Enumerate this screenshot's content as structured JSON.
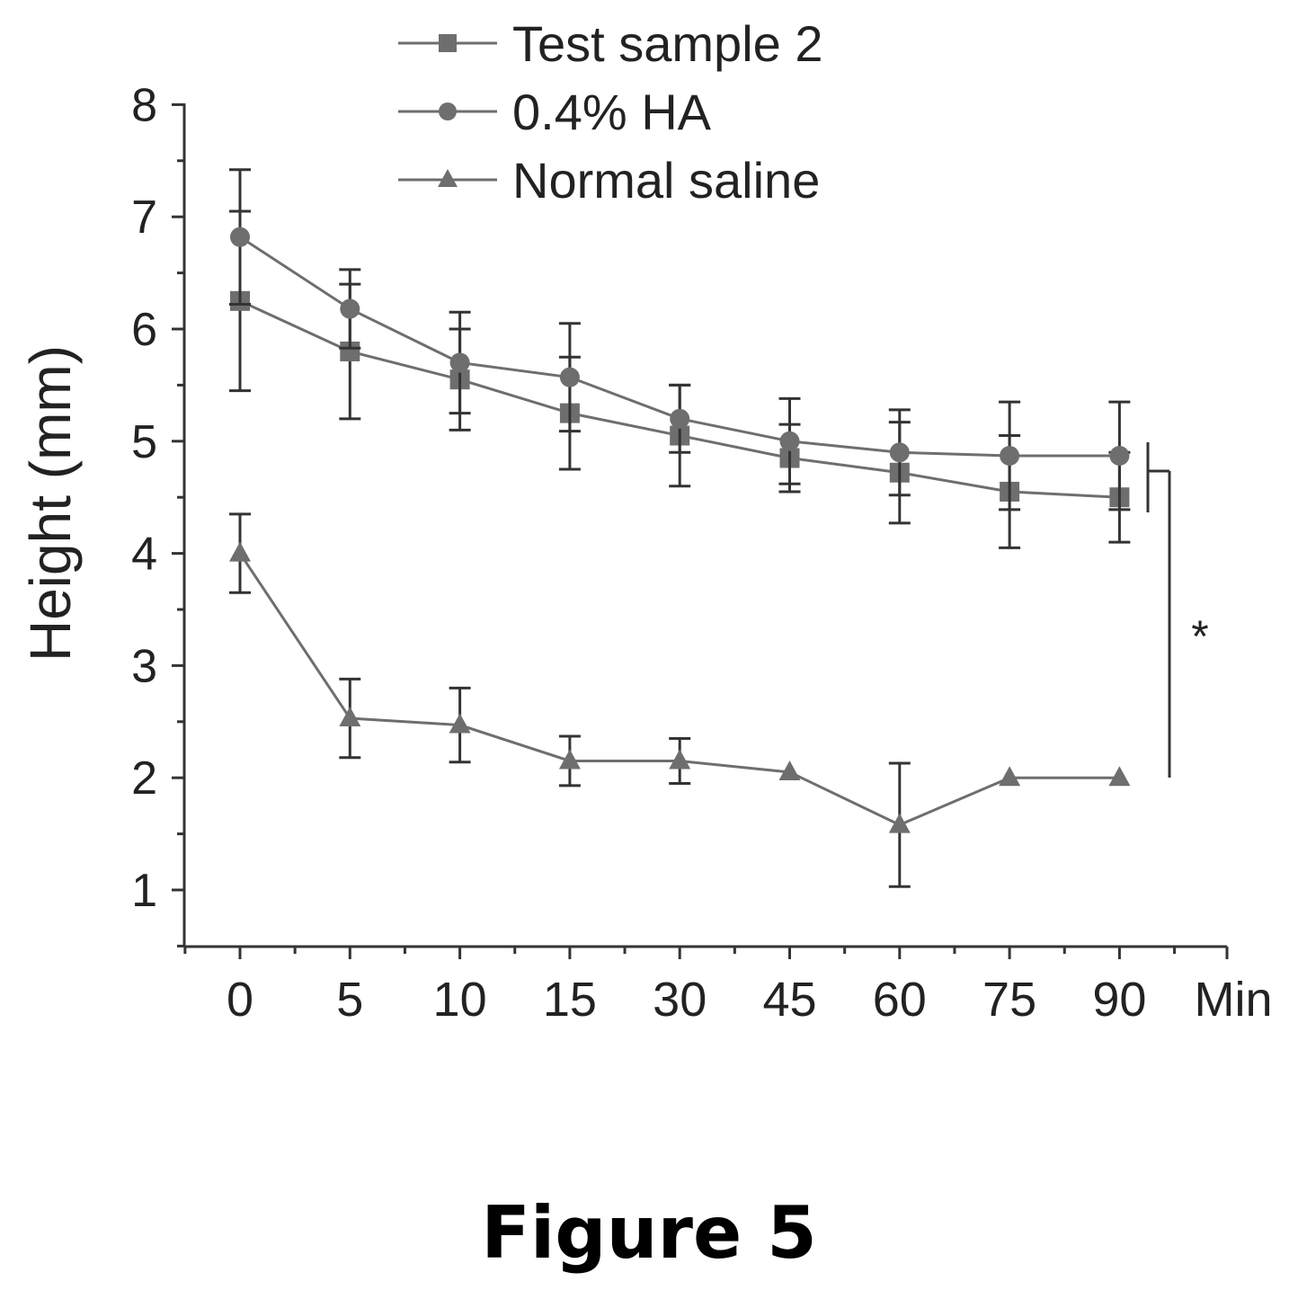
{
  "chart_data": {
    "type": "line",
    "title": "",
    "ylabel": "Height (mm)",
    "xlabel": "Min",
    "categories": [
      "0",
      "5",
      "10",
      "15",
      "30",
      "45",
      "60",
      "75",
      "90"
    ],
    "ylim": [
      0.5,
      8
    ],
    "yticks": [
      1,
      2,
      3,
      4,
      5,
      6,
      7,
      8
    ],
    "grid": false,
    "legend": "top-center",
    "series": [
      {
        "name": "Test sample 2",
        "marker": "square",
        "values": [
          6.25,
          5.8,
          5.55,
          5.25,
          5.05,
          4.85,
          4.72,
          4.55,
          4.5
        ],
        "errors": [
          0.8,
          0.6,
          0.45,
          0.5,
          0.45,
          0.3,
          0.45,
          0.5,
          0.4
        ]
      },
      {
        "name": "0.4% HA",
        "marker": "circle",
        "values": [
          6.82,
          6.18,
          5.7,
          5.57,
          5.2,
          5.0,
          4.9,
          4.87,
          4.87
        ],
        "errors": [
          0.6,
          0.35,
          0.45,
          0.48,
          0.3,
          0.38,
          0.38,
          0.48,
          0.48
        ]
      },
      {
        "name": "Normal saline",
        "marker": "triangle",
        "values": [
          4.0,
          2.53,
          2.47,
          2.15,
          2.15,
          2.05,
          1.58,
          2.0,
          2.0
        ],
        "errors": [
          0.35,
          0.35,
          0.33,
          0.22,
          0.2,
          0.0,
          0.55,
          0.0,
          0.0
        ]
      }
    ],
    "annotation": "*",
    "colors": {
      "line": "#6e6e6e",
      "axis": "#333333",
      "text": "#222222"
    }
  },
  "figure_label": "Figure 5"
}
